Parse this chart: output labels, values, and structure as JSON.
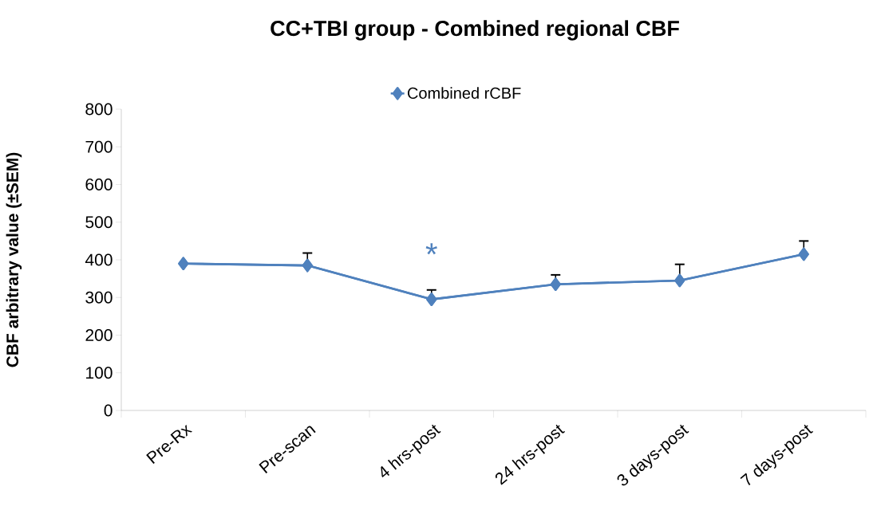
{
  "chart_data": {
    "type": "line",
    "title": "CC+TBI group - Combined regional CBF",
    "ylabel": "CBF arbitrary value (±SEM)",
    "categories": [
      "Pre-Rx",
      "Pre-scan",
      "4 hrs-post",
      "24 hrs-post",
      "3 days-post",
      "7 days-post"
    ],
    "series": [
      {
        "name": "Combined rCBF",
        "color": "#4f81bd",
        "values": [
          390,
          385,
          295,
          335,
          345,
          415
        ],
        "errors": [
          null,
          [
            385,
            418
          ],
          [
            295,
            320
          ],
          [
            335,
            360
          ],
          [
            345,
            388
          ],
          [
            415,
            450
          ]
        ]
      }
    ],
    "ylim": [
      0,
      800
    ],
    "yticks": [
      0,
      100,
      200,
      300,
      400,
      500,
      600,
      700,
      800
    ],
    "annotations": [
      "*"
    ],
    "marker": "diamond",
    "line_style": "solid",
    "grid": false,
    "legend": "top"
  }
}
